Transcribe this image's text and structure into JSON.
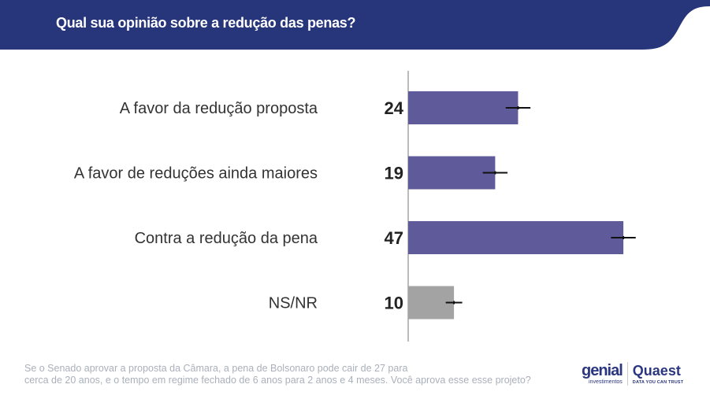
{
  "header": {
    "title": "Qual sua opinião sobre a redução das penas?"
  },
  "chart_data": {
    "type": "bar",
    "orientation": "horizontal",
    "categories": [
      "A favor da redução proposta",
      "A favor de reduções ainda maiores",
      "Contra a redução da pena",
      "NS/NR"
    ],
    "values": [
      24,
      19,
      47,
      10
    ],
    "value_labels": [
      "24",
      "19",
      "47",
      "10"
    ],
    "error_margin": [
      2.7,
      2.7,
      2.7,
      1.8
    ],
    "colors": [
      "#5f5a9a",
      "#5f5a9a",
      "#5f5a9a",
      "#a3a3a3"
    ],
    "xlim": [
      0,
      60
    ],
    "grid": false
  },
  "footer": {
    "line1": "Se o Senado aprovar a proposta da Câmara, a pena de Bolsonaro pode cair de 27 para",
    "line2": "cerca de 20 anos, e o tempo em regime fechado de 6 anos para 2 anos e 4 meses. Você aprova esse esse projeto?"
  },
  "logos": {
    "genial": "genial",
    "genial_sub": "investimentos",
    "quaest": "Quaest",
    "quaest_sub": "DATA YOU CAN TRUST"
  }
}
